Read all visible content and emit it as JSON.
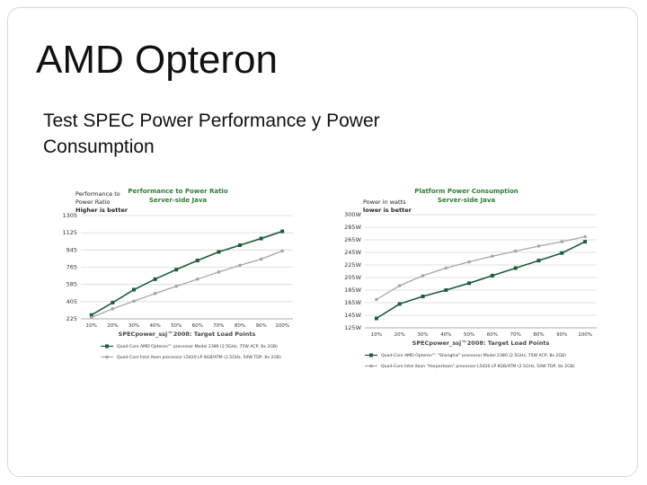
{
  "slide": {
    "title": "AMD Opteron",
    "subtitle": "Test SPEC Power Performance y Power Consumption"
  },
  "colors": {
    "series_amd": "#1e5b3a",
    "series_intel": "#a6a6a6",
    "title_green": "#2e7d32",
    "grid": "#d9d9d9"
  },
  "chart_data": [
    {
      "type": "line",
      "title": "Performance to Power Ratio",
      "subtitle": "Server-side Java",
      "ylabel_lines": [
        "Performance to",
        "Power Ratio",
        "Higher is better"
      ],
      "xlabel": "SPECpower_ssj™2008: Target Load Points",
      "categories": [
        "10%",
        "20%",
        "30%",
        "40%",
        "50%",
        "60%",
        "70%",
        "80%",
        "90%",
        "100%"
      ],
      "y_ticks": [
        "1305",
        "1125",
        "945",
        "765",
        "585",
        "405",
        "225"
      ],
      "ylim": [
        225,
        1305
      ],
      "series": [
        {
          "name": "Quad-Core AMD Opteron™ processor Model 2386 (2.5GHz, 75W ACP, 8x 2GB)",
          "marker": "square",
          "values": [
            265,
            395,
            530,
            640,
            740,
            835,
            925,
            995,
            1065,
            1140
          ]
        },
        {
          "name": "Quad-Core Intel Xeon processor L5420 LP 8GB/ATM (2.5GHz, 50W TDP, 8x 2GB)",
          "marker": "circle",
          "values": [
            240,
            330,
            410,
            490,
            565,
            640,
            715,
            785,
            850,
            935
          ]
        }
      ]
    },
    {
      "type": "line",
      "title": "Platform Power Consumption",
      "subtitle": "Server-side Java",
      "ylabel_lines": [
        "Power in watts",
        "lower is better"
      ],
      "xlabel": "SPECpower_ssj™2008: Target Load Points",
      "categories": [
        "10%",
        "20%",
        "30%",
        "40%",
        "50%",
        "60%",
        "70%",
        "80%",
        "90%",
        "100%"
      ],
      "y_ticks": [
        "300W",
        "285W",
        "265W",
        "245W",
        "225W",
        "205W",
        "185W",
        "165W",
        "145W",
        "125W"
      ],
      "ylim": [
        125,
        305
      ],
      "series": [
        {
          "name": "Quad-Core AMD Opteron™ \"Shanghai\" processor Model 2380 (2.5GHz, 75W ACP, 8x 2GB)",
          "marker": "square",
          "values": [
            140,
            163,
            175,
            185,
            196,
            208,
            220,
            232,
            244,
            262
          ]
        },
        {
          "name": "Quad-Core Intel Xeon \"Harpertown\" processor L5420 LP 8GB/ATM (2.5GHz, 50W TDP, 8x 2GB)",
          "marker": "circle",
          "values": [
            170,
            192,
            208,
            220,
            230,
            239,
            247,
            255,
            262,
            270
          ]
        }
      ]
    }
  ]
}
